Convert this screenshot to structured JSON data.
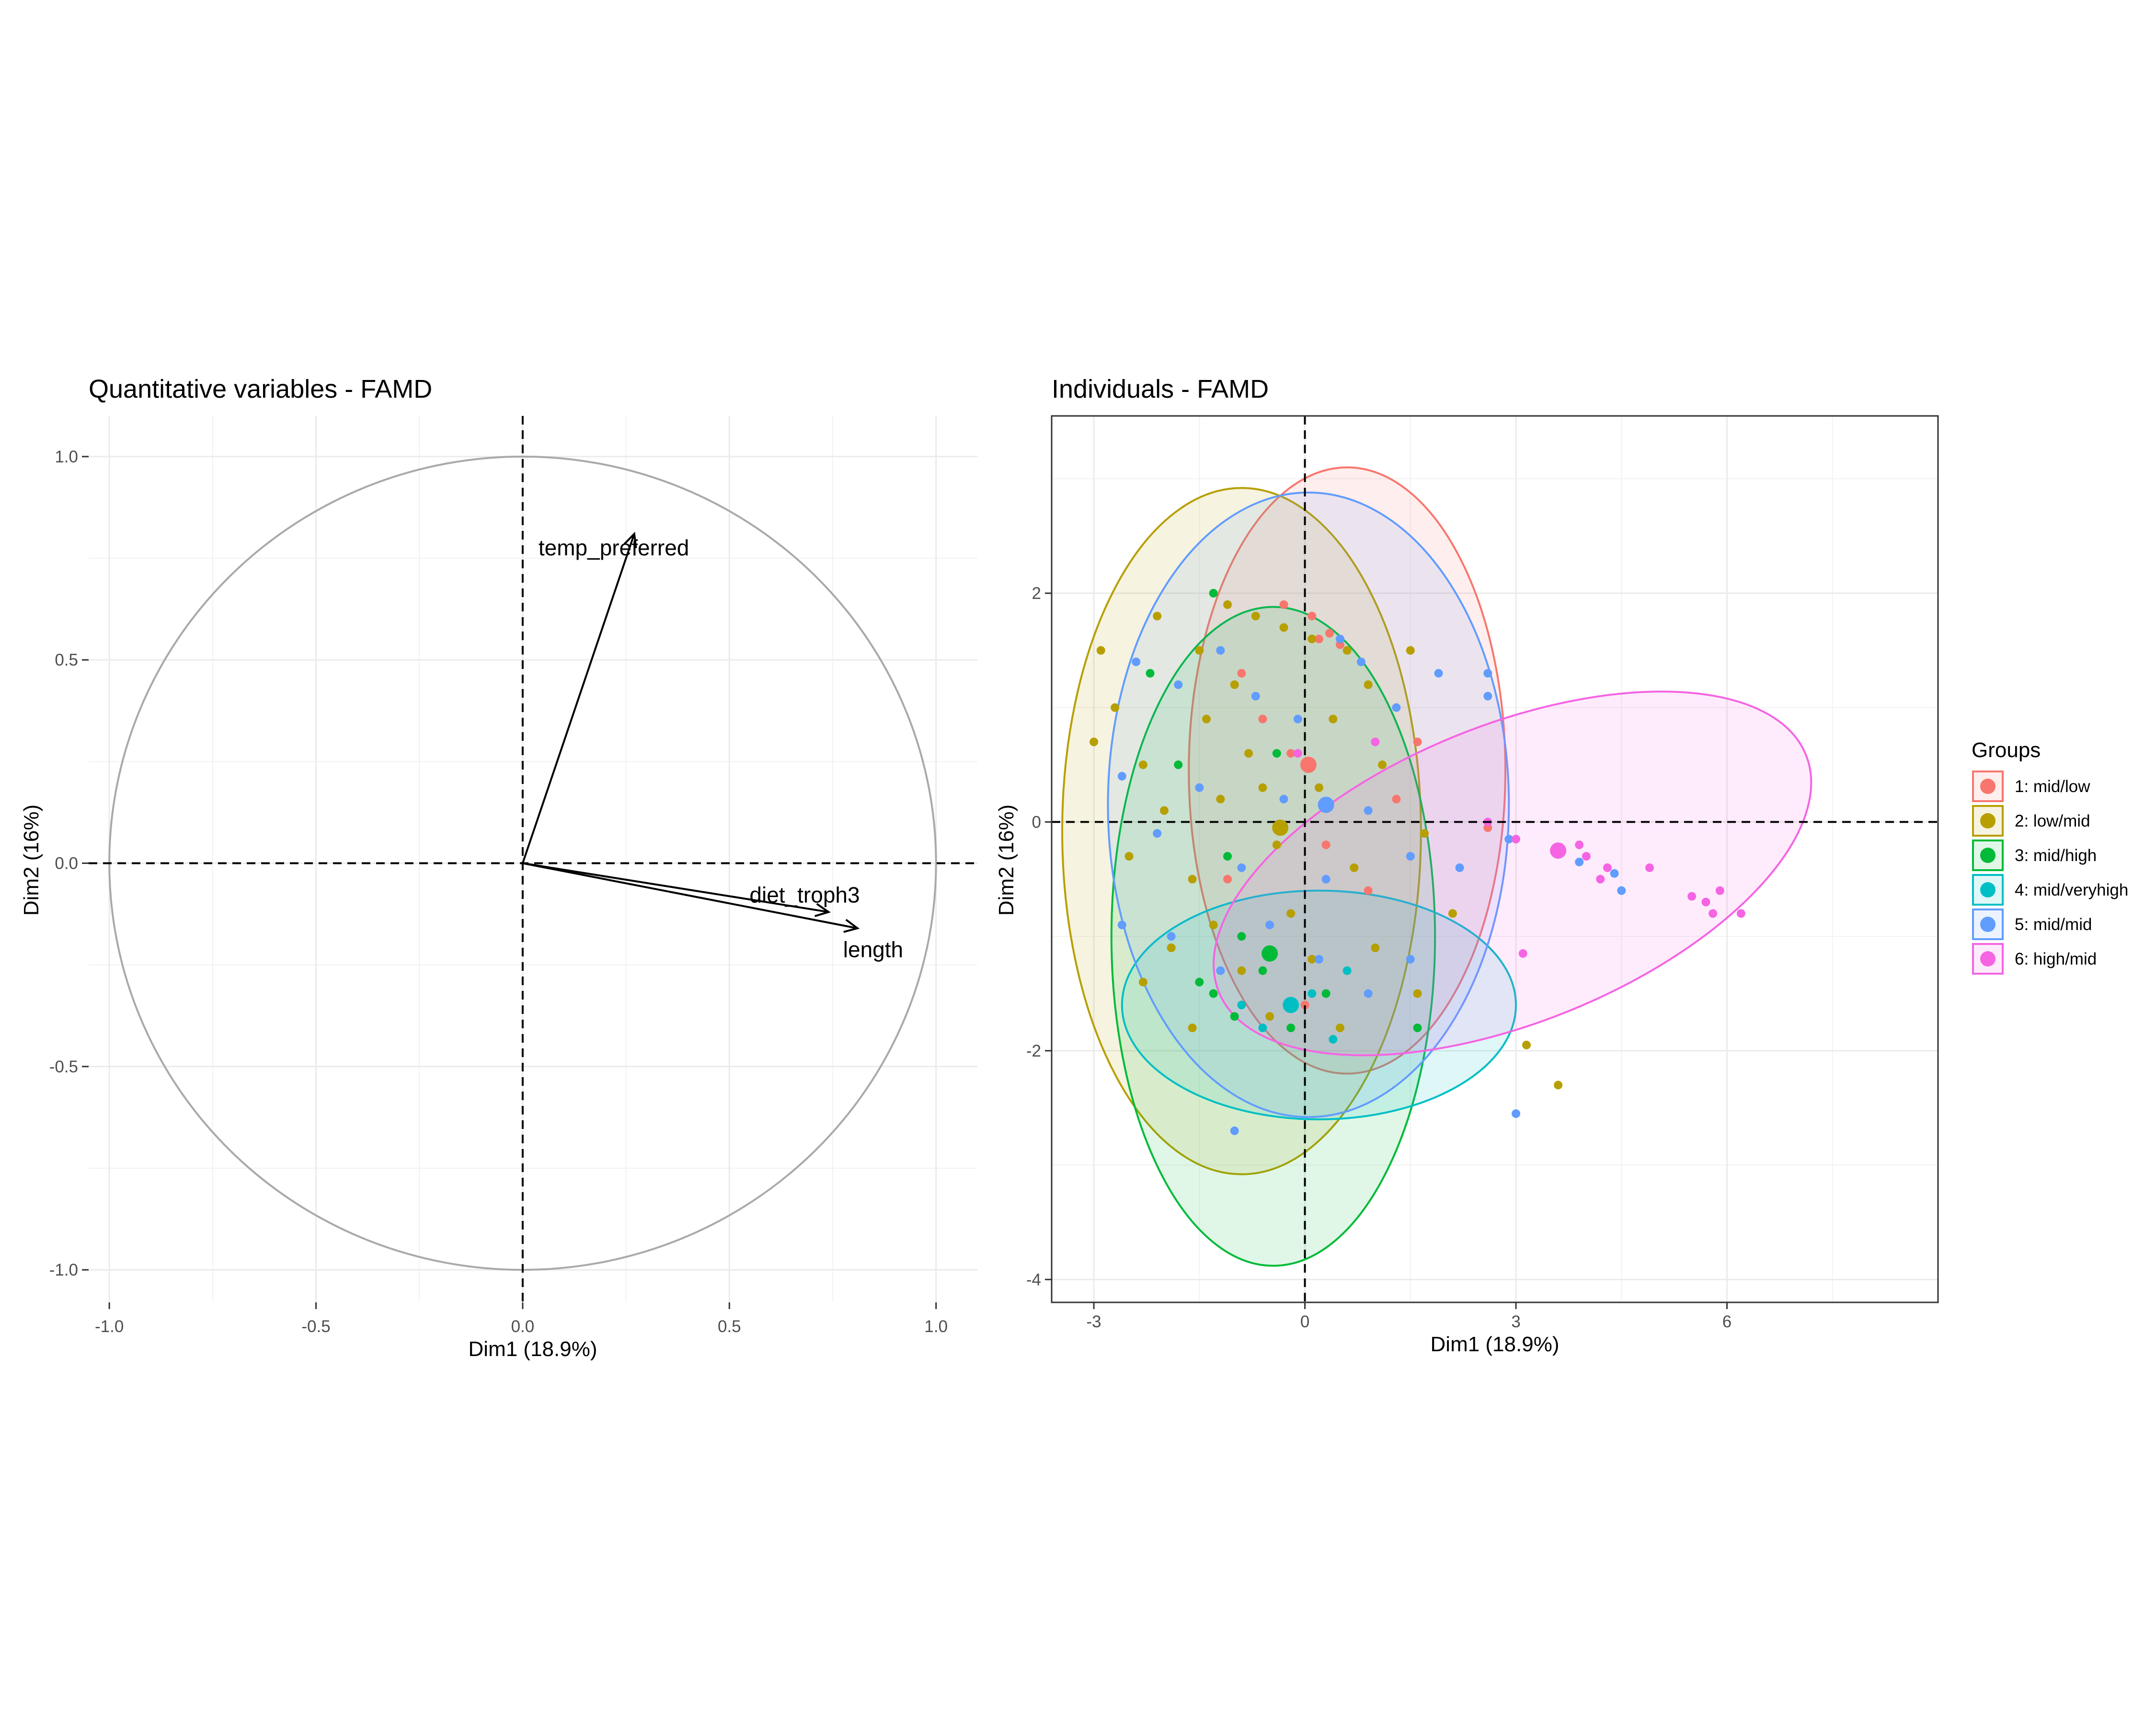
{
  "chart_data": [
    {
      "type": "scatter",
      "subtype": "correlation-circle",
      "title": "Quantitative variables - FAMD",
      "xlabel": "Dim1 (18.9%)",
      "ylabel": "Dim2 (16%)",
      "xlim": [
        -1.05,
        1.1
      ],
      "ylim": [
        -1.08,
        1.1
      ],
      "xticks": [
        -1.0,
        -0.5,
        0.0,
        0.5,
        1.0
      ],
      "xtick_labels": [
        "-1.0",
        "-0.5",
        "0.0",
        "0.5",
        "1.0"
      ],
      "yticks": [
        -1.0,
        -0.5,
        0.0,
        0.5,
        1.0
      ],
      "ytick_labels": [
        "-1.0",
        "-0.5",
        "0.0",
        "0.5",
        "1.0"
      ],
      "grid": true,
      "unit_circle": true,
      "reference_lines": {
        "x": 0,
        "y": 0,
        "style": "dashed"
      },
      "vectors": [
        {
          "name": "temp_preferred",
          "x": 0.27,
          "y": 0.81
        },
        {
          "name": "diet_troph3",
          "x": 0.74,
          "y": -0.12
        },
        {
          "name": "length",
          "x": 0.81,
          "y": -0.16
        }
      ]
    },
    {
      "type": "scatter",
      "subtype": "individuals-with-confidence-ellipses",
      "title": "Individuals - FAMD",
      "xlabel": "Dim1 (18.9%)",
      "ylabel": "Dim2 (16%)",
      "xlim": [
        -3.6,
        9.0
      ],
      "ylim": [
        -4.2,
        3.55
      ],
      "xticks": [
        -3,
        0,
        3,
        6
      ],
      "xtick_labels": [
        "-3",
        "0",
        "3",
        "6"
      ],
      "yticks": [
        -4,
        -2,
        0,
        2
      ],
      "ytick_labels": [
        "-4",
        "-2",
        "0",
        "2"
      ],
      "grid": true,
      "panel_border": true,
      "reference_lines": {
        "x": 0,
        "y": 0,
        "style": "dashed"
      },
      "legend": {
        "title": "Groups",
        "position": "right"
      },
      "series": [
        {
          "name": "1: mid/low",
          "color": "#F8766D",
          "centroid": {
            "x": 0.05,
            "y": 0.5
          },
          "ellipse": {
            "cx": 0.6,
            "cy": 0.45,
            "rx": 2.25,
            "ry": 2.65,
            "angle_deg": 0
          },
          "points": [
            [
              0.2,
              1.6
            ],
            [
              0.5,
              1.55
            ],
            [
              -0.9,
              1.3
            ],
            [
              -0.2,
              0.6
            ],
            [
              0.3,
              -0.2
            ],
            [
              1.3,
              0.2
            ],
            [
              -1.1,
              -0.5
            ],
            [
              0.1,
              1.8
            ],
            [
              0.35,
              1.65
            ],
            [
              -0.6,
              0.9
            ],
            [
              0.9,
              -0.6
            ],
            [
              0.0,
              -1.6
            ],
            [
              1.6,
              0.7
            ],
            [
              2.6,
              -0.05
            ],
            [
              -0.3,
              1.9
            ]
          ]
        },
        {
          "name": "2: low/mid",
          "color": "#B79F00",
          "centroid": {
            "x": -0.35,
            "y": -0.05
          },
          "ellipse": {
            "cx": -0.9,
            "cy": -0.08,
            "rx": 2.55,
            "ry": 3.0,
            "angle_deg": 0
          },
          "points": [
            [
              -3.0,
              0.7
            ],
            [
              -2.9,
              1.5
            ],
            [
              -2.7,
              1.0
            ],
            [
              -2.3,
              0.5
            ],
            [
              -2.1,
              1.8
            ],
            [
              -1.5,
              1.5
            ],
            [
              -1.1,
              1.9
            ],
            [
              -0.7,
              1.8
            ],
            [
              -0.3,
              1.7
            ],
            [
              0.1,
              1.6
            ],
            [
              0.6,
              1.5
            ],
            [
              1.5,
              1.5
            ],
            [
              -2.5,
              -0.3
            ],
            [
              -2.0,
              0.1
            ],
            [
              -1.6,
              -0.5
            ],
            [
              -1.2,
              0.2
            ],
            [
              -0.8,
              0.6
            ],
            [
              -0.4,
              -0.2
            ],
            [
              0.2,
              0.3
            ],
            [
              0.7,
              -0.4
            ],
            [
              1.1,
              0.5
            ],
            [
              1.7,
              -0.1
            ],
            [
              2.1,
              -0.8
            ],
            [
              -1.9,
              -1.1
            ],
            [
              -1.3,
              -0.9
            ],
            [
              -0.9,
              -1.3
            ],
            [
              -0.5,
              -1.7
            ],
            [
              0.1,
              -1.2
            ],
            [
              0.5,
              -1.8
            ],
            [
              1.0,
              -1.1
            ],
            [
              1.6,
              -1.5
            ],
            [
              -2.3,
              -1.4
            ],
            [
              -1.6,
              -1.8
            ],
            [
              -0.2,
              -0.8
            ],
            [
              0.4,
              0.9
            ],
            [
              -1.0,
              1.2
            ],
            [
              -0.6,
              0.3
            ],
            [
              3.15,
              -1.95
            ],
            [
              3.6,
              -2.3
            ],
            [
              -1.4,
              0.9
            ],
            [
              0.9,
              1.2
            ]
          ]
        },
        {
          "name": "3: mid/high",
          "color": "#00BA38",
          "centroid": {
            "x": -0.5,
            "y": -1.15
          },
          "ellipse": {
            "cx": -0.45,
            "cy": -1.0,
            "rx": 2.3,
            "ry": 2.88,
            "angle_deg": 0
          },
          "points": [
            [
              -1.3,
              2.0
            ],
            [
              -2.2,
              1.3
            ],
            [
              -1.8,
              0.5
            ],
            [
              -1.3,
              -1.5
            ],
            [
              -1.0,
              -1.7
            ],
            [
              -0.6,
              -1.3
            ],
            [
              -0.2,
              -1.8
            ],
            [
              0.3,
              -1.5
            ],
            [
              -1.5,
              -1.4
            ],
            [
              -0.9,
              -1.0
            ],
            [
              1.6,
              -1.8
            ],
            [
              -0.4,
              0.6
            ],
            [
              -1.1,
              -0.3
            ]
          ]
        },
        {
          "name": "4: mid/veryhigh",
          "color": "#00BFC4",
          "centroid": {
            "x": -0.2,
            "y": -1.6
          },
          "ellipse": {
            "cx": 0.2,
            "cy": -1.6,
            "rx": 2.8,
            "ry": 1.0,
            "angle_deg": 0
          },
          "points": [
            [
              -0.6,
              -1.8
            ],
            [
              0.1,
              -1.5
            ],
            [
              0.4,
              -1.9
            ],
            [
              -0.9,
              -1.6
            ],
            [
              0.6,
              -1.3
            ]
          ]
        },
        {
          "name": "5: mid/mid",
          "color": "#619CFF",
          "centroid": {
            "x": 0.3,
            "y": 0.15
          },
          "ellipse": {
            "cx": 0.05,
            "cy": 0.15,
            "rx": 2.85,
            "ry": 2.73,
            "angle_deg": 0
          },
          "points": [
            [
              -2.4,
              1.4
            ],
            [
              -1.8,
              1.2
            ],
            [
              -1.2,
              1.5
            ],
            [
              -0.7,
              1.1
            ],
            [
              -0.1,
              0.9
            ],
            [
              0.5,
              1.6
            ],
            [
              0.8,
              1.4
            ],
            [
              1.3,
              1.0
            ],
            [
              1.9,
              1.3
            ],
            [
              2.6,
              1.3
            ],
            [
              2.6,
              1.1
            ],
            [
              -2.6,
              0.4
            ],
            [
              -2.1,
              -0.1
            ],
            [
              -1.5,
              0.3
            ],
            [
              -0.9,
              -0.4
            ],
            [
              -0.3,
              0.2
            ],
            [
              0.3,
              -0.5
            ],
            [
              0.9,
              0.1
            ],
            [
              1.5,
              -0.3
            ],
            [
              2.2,
              -0.4
            ],
            [
              -1.9,
              -1.0
            ],
            [
              -1.2,
              -1.3
            ],
            [
              -0.5,
              -0.9
            ],
            [
              0.2,
              -1.2
            ],
            [
              0.9,
              -1.5
            ],
            [
              1.5,
              -1.2
            ],
            [
              -1.0,
              -2.7
            ],
            [
              3.0,
              -2.55
            ],
            [
              3.9,
              -0.35
            ],
            [
              4.4,
              -0.45
            ],
            [
              4.5,
              -0.6
            ],
            [
              2.9,
              -0.15
            ],
            [
              -2.6,
              -0.9
            ]
          ]
        },
        {
          "name": "6: high/mid",
          "color": "#F564E3",
          "centroid": {
            "x": 3.6,
            "y": -0.25
          },
          "ellipse": {
            "cx": 2.95,
            "cy": -0.45,
            "rx": 4.5,
            "ry": 1.3,
            "angle_deg": -22
          },
          "points": [
            [
              -0.1,
              0.6
            ],
            [
              1.0,
              0.7
            ],
            [
              2.6,
              0.0
            ],
            [
              3.0,
              -0.15
            ],
            [
              3.1,
              -1.15
            ],
            [
              3.9,
              -0.2
            ],
            [
              4.0,
              -0.3
            ],
            [
              4.3,
              -0.4
            ],
            [
              4.9,
              -0.4
            ],
            [
              5.5,
              -0.65
            ],
            [
              5.7,
              -0.7
            ],
            [
              5.8,
              -0.8
            ],
            [
              5.9,
              -0.6
            ],
            [
              6.2,
              -0.8
            ],
            [
              4.2,
              -0.5
            ]
          ]
        }
      ]
    }
  ]
}
